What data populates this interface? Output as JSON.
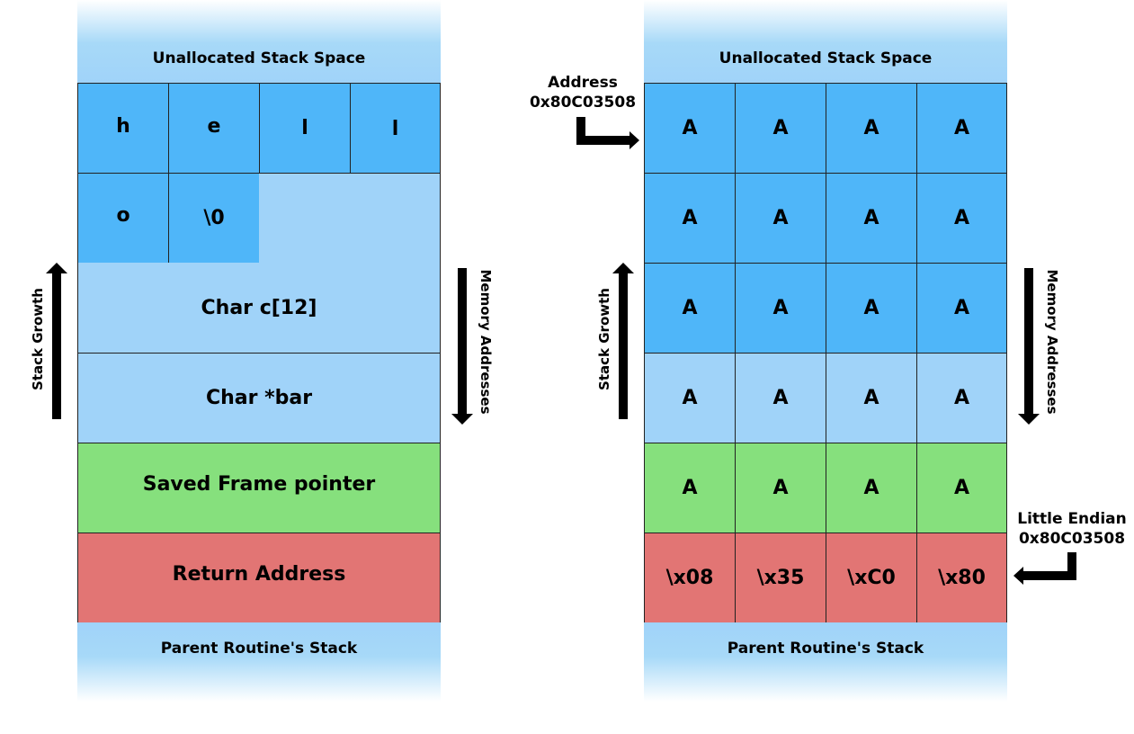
{
  "left": {
    "unallocated": "Unallocated Stack Space",
    "row1": [
      "h",
      "e",
      "l",
      "l"
    ],
    "row2": [
      "o",
      "\\0"
    ],
    "char_c": "Char c[12]",
    "char_bar": "Char *bar",
    "saved_frame": "Saved Frame pointer",
    "return_address": "Return Address",
    "parent_stack": "Parent Routine's Stack",
    "stack_growth": "Stack Growth",
    "memory_addresses": "Memory Addresses"
  },
  "right": {
    "unallocated": "Unallocated Stack Space",
    "rows": [
      [
        "A",
        "A",
        "A",
        "A"
      ],
      [
        "A",
        "A",
        "A",
        "A"
      ],
      [
        "A",
        "A",
        "A",
        "A"
      ],
      [
        "A",
        "A",
        "A",
        "A"
      ],
      [
        "A",
        "A",
        "A",
        "A"
      ],
      [
        "\\x08",
        "\\x35",
        "\\xC0",
        "\\x80"
      ]
    ],
    "parent_stack": "Parent Routine's Stack",
    "stack_growth": "Stack Growth",
    "memory_addresses": "Memory Addresses",
    "address_label": "Address",
    "address_value": "0x80C03508",
    "endian_label": "Little Endian",
    "endian_value": "0x80C03508"
  },
  "colors": {
    "buffer_filled": "#4fb6f9",
    "stack_light": "#a0d3f9",
    "saved_frame": "#86e07d",
    "return_address": "#e27574"
  }
}
